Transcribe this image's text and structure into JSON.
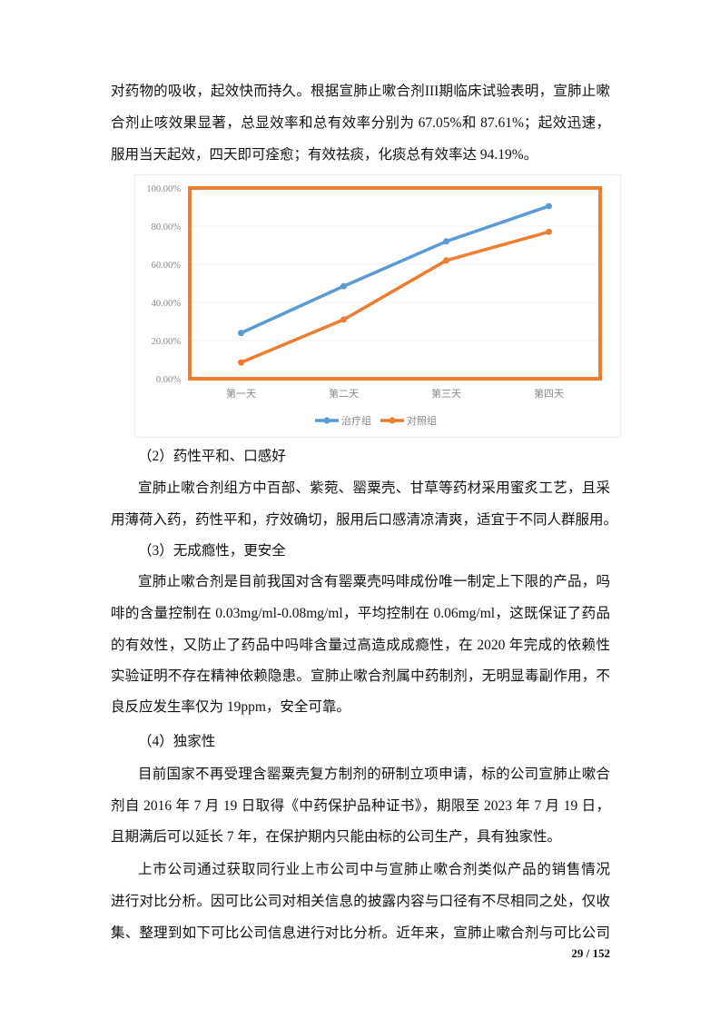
{
  "paragraphs": {
    "p1": [
      "对药物的吸收，起效快而持久。根据宣肺止嗽合剂III期临床试验表明，宣肺止嗽",
      "合剂止咳效果显著，总显效率和总有效率分别为 67.05%和 87.61%；起效迅速，",
      "服用当天起效，四天即可痊愈；有效祛痰，化痰总有效率达 94.19%。"
    ],
    "h2": "（2）药性平和、口感好",
    "p2": [
      "宣肺止嗽合剂组方中百部、紫菀、罂粟壳、甘草等药材采用蜜炙工艺，且采",
      "用薄荷入药，药性平和，疗效确切，服用后口感清凉清爽，适宜于不同人群服用。"
    ],
    "h3": "（3）无成瘾性，更安全",
    "p3": [
      "宣肺止嗽合剂是目前我国对含有罂粟壳吗啡成份唯一制定上下限的产品，吗",
      "啡的含量控制在 0.03mg/ml-0.08mg/ml，平均控制在 0.06mg/ml，这既保证了药品",
      "的有效性，又防止了药品中吗啡含量过高造成成瘾性，在 2020 年完成的依赖性",
      "实验证明不存在精神依赖隐患。宣肺止嗽合剂属中药制剂，无明显毒副作用，不",
      "良反应发生率仅为 19ppm，安全可靠。"
    ],
    "h4": "（4）独家性",
    "p4": [
      "目前国家不再受理含罂粟壳复方制剂的研制立项申请，标的公司宣肺止嗽合",
      "剂自 2016 年 7 月 19 日取得《中药保护品种证书》，期限至 2023 年 7 月 19 日，",
      "且期满后可以延长 7 年，在保护期内只能由标的公司生产，具有独家性。"
    ],
    "p5": [
      "上市公司通过获取同行业上市公司中与宣肺止嗽合剂类似产品的销售情况",
      "进行对比分析。因可比公司对相关信息的披露内容与口径有不尽相同之处，仅收",
      "集、整理到如下可比公司信息进行对比分析。近年来，宣肺止嗽合剂与可比公司"
    ]
  },
  "page_number": "29 / 152",
  "chart_data": {
    "type": "line",
    "categories": [
      "第一天",
      "第二天",
      "第三天",
      "第四天"
    ],
    "series": [
      {
        "name": "治疗组",
        "values": [
          24.0,
          48.5,
          72.0,
          90.5
        ],
        "color": "#5b9bd5"
      },
      {
        "name": "对照组",
        "values": [
          8.5,
          31.0,
          62.0,
          77.0
        ],
        "color": "#ed7d31"
      }
    ],
    "yticks": [
      "0.00%",
      "20.00%",
      "40.00%",
      "60.00%",
      "80.00%",
      "100.00%"
    ],
    "ylim": [
      0,
      100
    ],
    "legend": "bottom",
    "highlight_border_color": "#ed7d31"
  }
}
